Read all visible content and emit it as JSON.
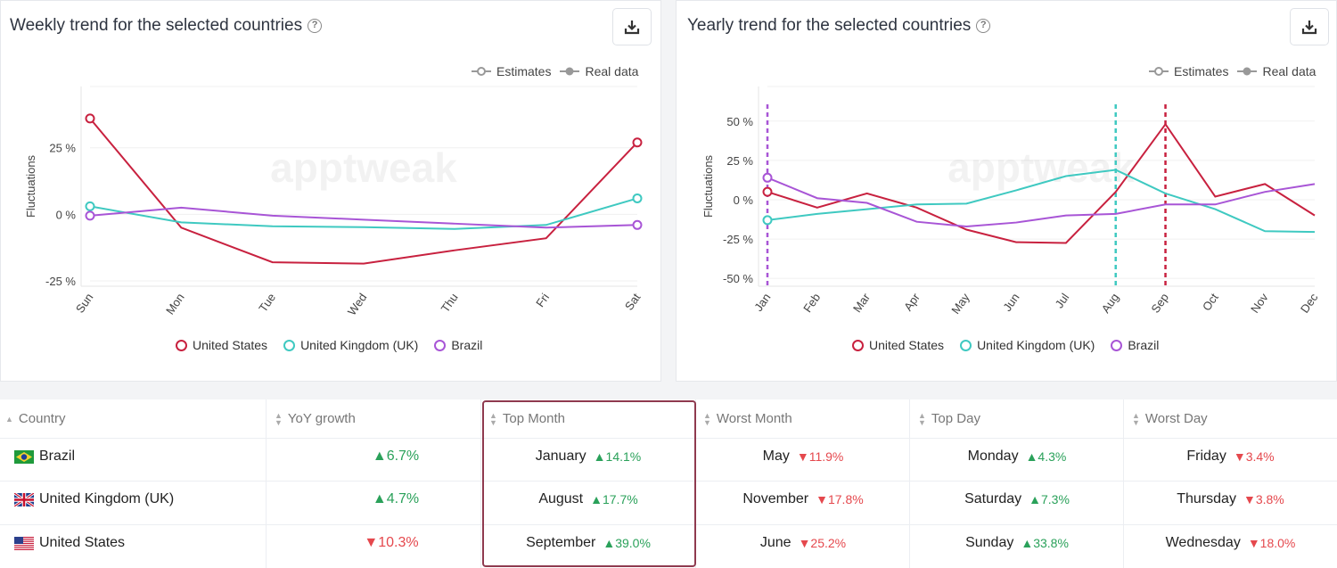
{
  "weekly": {
    "title": "Weekly trend for the selected countries",
    "legend_estimates": "Estimates",
    "legend_real": "Real data",
    "y_axis_label": "Fluctuations",
    "watermark": "apptweak"
  },
  "yearly": {
    "title": "Yearly trend for the selected countries",
    "legend_estimates": "Estimates",
    "legend_real": "Real data",
    "y_axis_label": "Fluctuations",
    "watermark": "apptweak"
  },
  "series_legend": {
    "us": "United States",
    "uk": "United Kingdom (UK)",
    "br": "Brazil"
  },
  "colors": {
    "us": "#c8213f",
    "uk": "#3fc9c1",
    "br": "#a855d6"
  },
  "chart_data": [
    {
      "type": "line",
      "title": "Weekly trend for the selected countries",
      "ylabel": "Fluctuations",
      "categories": [
        "Sun",
        "Mon",
        "Tue",
        "Wed",
        "Thu",
        "Fri",
        "Sat"
      ],
      "yticks": [
        25,
        0,
        -25
      ],
      "ytick_labels": [
        "25 %",
        "0 %",
        "-25 %"
      ],
      "ylim": [
        -27,
        48
      ],
      "series": [
        {
          "name": "United States",
          "values": [
            36,
            -5,
            -18,
            -18.5,
            -13.5,
            -9,
            27
          ]
        },
        {
          "name": "United Kingdom (UK)",
          "values": [
            3,
            -3,
            -4.5,
            -4.8,
            -5.5,
            -4,
            6
          ]
        },
        {
          "name": "Brazil",
          "values": [
            -0.5,
            2.5,
            -0.5,
            -2,
            -3.5,
            -5,
            -4
          ]
        }
      ]
    },
    {
      "type": "line",
      "title": "Yearly trend for the selected countries",
      "ylabel": "Fluctuations",
      "categories": [
        "Jan",
        "Feb",
        "Mar",
        "Apr",
        "May",
        "Jun",
        "Jul",
        "Aug",
        "Sep",
        "Oct",
        "Nov",
        "Dec"
      ],
      "yticks": [
        50,
        25,
        0,
        -25,
        -50
      ],
      "ytick_labels": [
        "50 %",
        "25 %",
        "0 %",
        "-25 %",
        "-50 %"
      ],
      "ylim": [
        -55,
        72
      ],
      "series": [
        {
          "name": "United States",
          "values": [
            5,
            -5,
            4,
            -5,
            -19,
            -27,
            -27.5,
            5,
            48,
            2,
            10,
            -10
          ]
        },
        {
          "name": "United Kingdom (UK)",
          "values": [
            -13,
            -9,
            -6,
            -3,
            -2.5,
            6,
            15,
            19,
            4,
            -6,
            -20,
            -20.5
          ]
        },
        {
          "name": "Brazil",
          "values": [
            14,
            1,
            -2,
            -14,
            -17,
            -14.5,
            -10,
            -9,
            -3,
            -3,
            5,
            10
          ]
        }
      ],
      "markers": [
        {
          "category": "Jan",
          "series": "Brazil"
        },
        {
          "category": "Aug",
          "series": "United Kingdom (UK)"
        },
        {
          "category": "Sep",
          "series": "United States"
        }
      ]
    }
  ],
  "table": {
    "headers": [
      "Country",
      "YoY growth",
      "Top Month",
      "Worst Month",
      "Top Day",
      "Worst Day"
    ],
    "rows": [
      {
        "country": "Brazil",
        "yoy": "6.7%",
        "yoy_dir": "up",
        "top_month": "January",
        "top_month_pct": "14.1%",
        "worst_month": "May",
        "worst_month_pct": "11.9%",
        "top_day": "Monday",
        "top_day_pct": "4.3%",
        "worst_day": "Friday",
        "worst_day_pct": "3.4%"
      },
      {
        "country": "United Kingdom (UK)",
        "yoy": "4.7%",
        "yoy_dir": "up",
        "top_month": "August",
        "top_month_pct": "17.7%",
        "worst_month": "November",
        "worst_month_pct": "17.8%",
        "top_day": "Saturday",
        "top_day_pct": "7.3%",
        "worst_day": "Thursday",
        "worst_day_pct": "3.8%"
      },
      {
        "country": "United States",
        "yoy": "10.3%",
        "yoy_dir": "down",
        "top_month": "September",
        "top_month_pct": "39.0%",
        "worst_month": "June",
        "worst_month_pct": "25.2%",
        "top_day": "Sunday",
        "top_day_pct": "33.8%",
        "worst_day": "Wednesday",
        "worst_day_pct": "18.0%"
      }
    ]
  }
}
